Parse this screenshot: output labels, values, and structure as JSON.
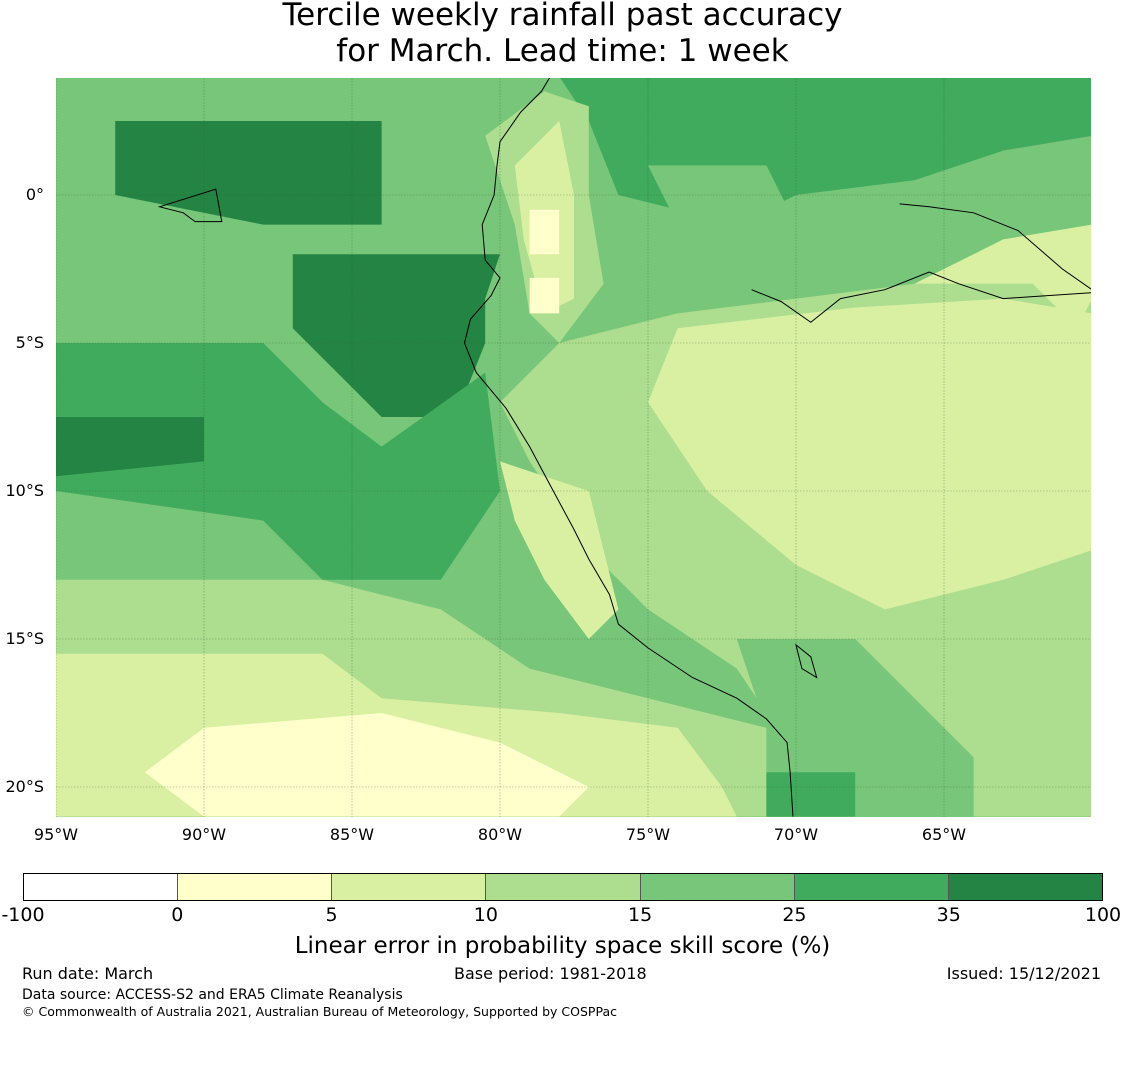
{
  "title": {
    "line1": "Tercile weekly rainfall past accuracy",
    "line2": "for March. Lead time: 1 week"
  },
  "map": {
    "lon_range": [
      -95,
      -60
    ],
    "lat_range": [
      -21,
      4
    ],
    "lat_ticks": [
      {
        "value": 0,
        "label": "0°"
      },
      {
        "value": -5,
        "label": "5°S"
      },
      {
        "value": -10,
        "label": "10°S"
      },
      {
        "value": -15,
        "label": "15°S"
      },
      {
        "value": -20,
        "label": "20°S"
      }
    ],
    "lon_ticks": [
      {
        "value": -95,
        "label": "95°W"
      },
      {
        "value": -90,
        "label": "90°W"
      },
      {
        "value": -85,
        "label": "85°W"
      },
      {
        "value": -80,
        "label": "80°W"
      },
      {
        "value": -75,
        "label": "75°W"
      },
      {
        "value": -70,
        "label": "70°W"
      },
      {
        "value": -65,
        "label": "65°W"
      }
    ],
    "grid": true,
    "background_color": "#78c679",
    "regions": [
      {
        "level": 5,
        "poly": [
          [
            -95,
            4
          ],
          [
            -60,
            4
          ],
          [
            -60,
            2
          ],
          [
            -63,
            1.5
          ],
          [
            -66,
            0.5
          ],
          [
            -70,
            0
          ],
          [
            -72,
            -1
          ],
          [
            -76,
            0
          ],
          [
            -77,
            2.5
          ],
          [
            -78,
            4
          ]
        ]
      },
      {
        "level": 6,
        "poly": [
          [
            -93,
            2.5
          ],
          [
            -84,
            2.5
          ],
          [
            -84,
            -1
          ],
          [
            -88,
            -1
          ],
          [
            -93,
            0
          ]
        ]
      },
      {
        "level": 4,
        "poly": [
          [
            -95,
            4
          ],
          [
            -85,
            4
          ],
          [
            -86,
            3
          ],
          [
            -90,
            3
          ],
          [
            -95,
            3.3
          ]
        ]
      },
      {
        "level": 6,
        "poly": [
          [
            -87,
            -2
          ],
          [
            -80,
            -2
          ],
          [
            -80.5,
            -3.5
          ],
          [
            -80.5,
            -5
          ],
          [
            -81.5,
            -7.5
          ],
          [
            -84,
            -7.5
          ],
          [
            -87,
            -4.5
          ]
        ]
      },
      {
        "level": 5,
        "poly": [
          [
            -95,
            -5
          ],
          [
            -88,
            -5
          ],
          [
            -86,
            -7
          ],
          [
            -84,
            -8.5
          ],
          [
            -84,
            -10.5
          ],
          [
            -88,
            -11
          ],
          [
            -95,
            -10
          ]
        ]
      },
      {
        "level": 6,
        "poly": [
          [
            -95,
            -7.5
          ],
          [
            -90,
            -7.5
          ],
          [
            -90,
            -9
          ],
          [
            -95,
            -9.5
          ]
        ]
      },
      {
        "level": 5,
        "poly": [
          [
            -84,
            -8.5
          ],
          [
            -80.5,
            -6
          ],
          [
            -80,
            -10
          ],
          [
            -82,
            -13
          ],
          [
            -86,
            -13
          ],
          [
            -88,
            -11
          ]
        ]
      },
      {
        "level": 3,
        "poly": [
          [
            -95,
            -13
          ],
          [
            -86,
            -13
          ],
          [
            -82,
            -14
          ],
          [
            -79,
            -16
          ],
          [
            -75,
            -17
          ],
          [
            -71,
            -18
          ],
          [
            -70,
            -20
          ],
          [
            -70,
            -21
          ],
          [
            -95,
            -21
          ]
        ]
      },
      {
        "level": 2,
        "poly": [
          [
            -95,
            -15.5
          ],
          [
            -86,
            -15.5
          ],
          [
            -84,
            -17
          ],
          [
            -78,
            -17.5
          ],
          [
            -74,
            -18
          ],
          [
            -72.5,
            -20
          ],
          [
            -72,
            -21
          ],
          [
            -95,
            -21
          ]
        ]
      },
      {
        "level": 1,
        "poly": [
          [
            -90,
            -18
          ],
          [
            -84,
            -17.5
          ],
          [
            -80,
            -18.5
          ],
          [
            -77,
            -20
          ],
          [
            -78,
            -21
          ],
          [
            -90,
            -21
          ],
          [
            -92,
            -19.5
          ]
        ]
      },
      {
        "level": 3,
        "poly": [
          [
            -80,
            -7
          ],
          [
            -78,
            -5
          ],
          [
            -74,
            -4
          ],
          [
            -70,
            -3.5
          ],
          [
            -66,
            -3
          ],
          [
            -60,
            -3
          ],
          [
            -60,
            -21
          ],
          [
            -70,
            -21
          ],
          [
            -70,
            -19
          ],
          [
            -72,
            -16
          ],
          [
            -75,
            -14
          ],
          [
            -77,
            -12
          ],
          [
            -79,
            -9
          ]
        ]
      },
      {
        "level": 2,
        "poly": [
          [
            -74,
            -4.5
          ],
          [
            -68,
            -3.8
          ],
          [
            -63,
            -3.5
          ],
          [
            -60,
            -4
          ],
          [
            -60,
            -12
          ],
          [
            -63,
            -13
          ],
          [
            -67,
            -14
          ],
          [
            -70,
            -12.5
          ],
          [
            -73,
            -10
          ],
          [
            -75,
            -7
          ]
        ]
      },
      {
        "level": 2,
        "poly": [
          [
            -80,
            -9
          ],
          [
            -77,
            -10
          ],
          [
            -76,
            -14
          ],
          [
            -77,
            -15
          ],
          [
            -78.5,
            -13
          ],
          [
            -79.5,
            -11
          ]
        ]
      },
      {
        "level": 4,
        "poly": [
          [
            -72,
            -15
          ],
          [
            -68,
            -15
          ],
          [
            -66,
            -17
          ],
          [
            -64,
            -19
          ],
          [
            -64,
            -21
          ],
          [
            -71,
            -21
          ],
          [
            -71,
            -18
          ]
        ]
      },
      {
        "level": 5,
        "poly": [
          [
            -71,
            -19.5
          ],
          [
            -68,
            -19.5
          ],
          [
            -68,
            -21
          ],
          [
            -71,
            -21
          ]
        ]
      },
      {
        "level": 3,
        "poly": [
          [
            -80.5,
            2
          ],
          [
            -78.5,
            3.5
          ],
          [
            -77,
            3
          ],
          [
            -77,
            0
          ],
          [
            -76.5,
            -3
          ],
          [
            -78,
            -5
          ],
          [
            -79,
            -4
          ],
          [
            -79.5,
            -1
          ]
        ]
      },
      {
        "level": 2,
        "poly": [
          [
            -79.5,
            1
          ],
          [
            -78,
            2.5
          ],
          [
            -77.5,
            0
          ],
          [
            -77.5,
            -3.5
          ],
          [
            -78.5,
            -4
          ],
          [
            -79.2,
            -1.5
          ]
        ]
      },
      {
        "level": 1,
        "poly": [
          [
            -79,
            -0.5
          ],
          [
            -78,
            -0.5
          ],
          [
            -78,
            -2
          ],
          [
            -79,
            -2
          ]
        ]
      },
      {
        "level": 1,
        "poly": [
          [
            -79,
            -2.8
          ],
          [
            -78,
            -2.8
          ],
          [
            -78,
            -4
          ],
          [
            -79,
            -4
          ]
        ]
      },
      {
        "level": 2,
        "poly": [
          [
            -66,
            -3
          ],
          [
            -62,
            -3
          ],
          [
            -60.5,
            -4.5
          ],
          [
            -60,
            -3.5
          ],
          [
            -60,
            -1
          ],
          [
            -63,
            -1.5
          ]
        ]
      },
      {
        "level": 4,
        "poly": [
          [
            -75,
            1
          ],
          [
            -71,
            1
          ],
          [
            -70,
            -1
          ],
          [
            -72,
            -2
          ],
          [
            -74,
            -1
          ]
        ]
      }
    ],
    "coastline": [
      [
        -78.3,
        4
      ],
      [
        -78.6,
        3.5
      ],
      [
        -79.3,
        2.8
      ],
      [
        -80,
        1.8
      ],
      [
        -80.1,
        1
      ],
      [
        -80.2,
        0
      ],
      [
        -80.6,
        -1
      ],
      [
        -80.5,
        -2.2
      ],
      [
        -80,
        -2.8
      ],
      [
        -80.3,
        -3.4
      ],
      [
        -81,
        -4.2
      ],
      [
        -81.2,
        -5
      ],
      [
        -80.8,
        -6
      ],
      [
        -79.8,
        -7.2
      ],
      [
        -79,
        -8.5
      ],
      [
        -78.2,
        -10
      ],
      [
        -77.5,
        -11.3
      ],
      [
        -77,
        -12.3
      ],
      [
        -76.3,
        -13.5
      ],
      [
        -76,
        -14.5
      ],
      [
        -75,
        -15.3
      ],
      [
        -73.5,
        -16.3
      ],
      [
        -72,
        -17
      ],
      [
        -71,
        -17.7
      ],
      [
        -70.3,
        -18.5
      ],
      [
        -70.2,
        -19.5
      ],
      [
        -70.1,
        -21
      ]
    ],
    "river": [
      [
        -66.5,
        -0.3
      ],
      [
        -65.5,
        -0.4
      ],
      [
        -64,
        -0.6
      ],
      [
        -62.5,
        -1.2
      ],
      [
        -61,
        -2.5
      ],
      [
        -60,
        -3.2
      ]
    ],
    "river2": [
      [
        -71.5,
        -3.2
      ],
      [
        -70.5,
        -3.6
      ],
      [
        -69.5,
        -4.3
      ],
      [
        -68.5,
        -3.5
      ],
      [
        -67,
        -3.2
      ],
      [
        -65.5,
        -2.6
      ],
      [
        -64.5,
        -3
      ],
      [
        -63,
        -3.5
      ],
      [
        -61.5,
        -3.4
      ],
      [
        -60,
        -3.3
      ]
    ],
    "islands": [
      [
        -91.5,
        -0.4
      ],
      [
        -90.7,
        -0.6
      ],
      [
        -90.3,
        -0.9
      ],
      [
        -89.4,
        -0.9
      ],
      [
        -89.6,
        0.2
      ]
    ],
    "lake": [
      [
        -70,
        -15.2
      ],
      [
        -69.5,
        -15.6
      ],
      [
        -69.3,
        -16.3
      ],
      [
        -69.8,
        -16.0
      ]
    ]
  },
  "colorbar": {
    "colors": [
      "#ffffff",
      "#ffffcc",
      "#d9f0a3",
      "#addd8e",
      "#78c679",
      "#41ab5d",
      "#238443"
    ],
    "tick_labels": [
      "-100",
      "0",
      "5",
      "10",
      "15",
      "25",
      "35",
      "100"
    ],
    "label": "Linear error in probability space skill score (%)"
  },
  "footer": {
    "run_date": "Run date: March",
    "base_period": "Base period: 1981-2018",
    "issued": "Issued: 15/12/2021",
    "data_source": "Data source: ACCESS-S2 and ERA5 Climate Reanalysis",
    "copyright": "© Commonwealth of Australia 2021, Australian Bureau of Meteorology, Supported by COSPPac"
  }
}
